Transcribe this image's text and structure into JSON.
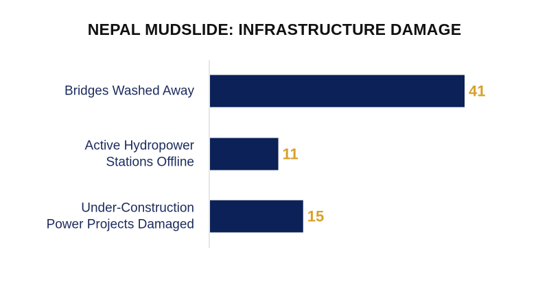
{
  "chart_data": {
    "type": "bar",
    "orientation": "horizontal",
    "title": "NEPAL MUDSLIDE: INFRASTRUCTURE DAMAGE",
    "categories": [
      [
        "Bridges Washed Away"
      ],
      [
        "Active Hydropower",
        "Stations Offline"
      ],
      [
        "Under-Construction",
        "Power Projects Damaged"
      ]
    ],
    "values": [
      41,
      11,
      15
    ],
    "xlim": [
      0,
      41
    ],
    "grid": false,
    "legend": "none",
    "colors": {
      "bar": "#0b2157",
      "value_label": "#d9a02a",
      "category_label": "#1a2a5c",
      "axis": "#cccccc"
    }
  }
}
